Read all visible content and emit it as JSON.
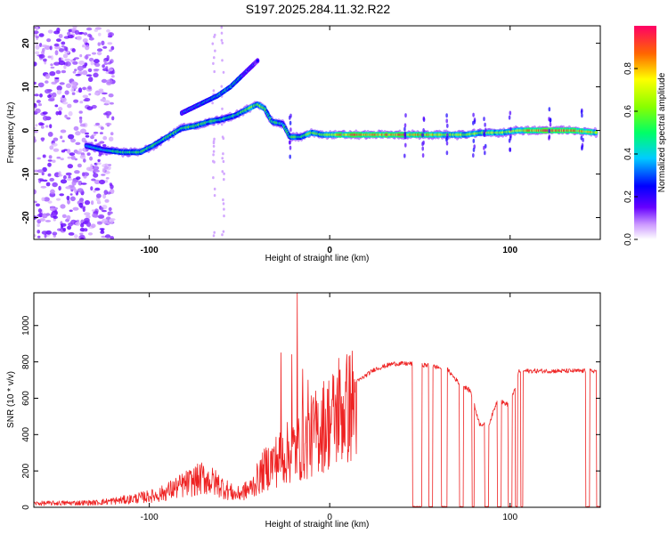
{
  "title": "S197.2025.284.11.32.R22",
  "colors": {
    "snr_line": "#ee2222",
    "frame": "#000000",
    "background": "#ffffff"
  },
  "chart_data": [
    {
      "type": "heatmap",
      "name": "spectrogram",
      "xlabel": "Height of straight line (km)",
      "ylabel": "Frequency (Hz)",
      "xlim": [
        -164,
        150
      ],
      "ylim": [
        -25,
        24
      ],
      "xticks": [
        -100,
        0,
        100
      ],
      "xtick_labels": [
        "-100",
        "0",
        "100"
      ],
      "yticks": [
        -20,
        -10,
        0,
        10,
        20
      ],
      "ytick_labels": [
        "-20",
        "-10",
        "0",
        "10",
        "20"
      ],
      "colorbar": {
        "label": "Normalized spectral amplitude",
        "range": [
          0,
          1
        ],
        "ticks": [
          0.0,
          0.2,
          0.4,
          0.6,
          0.8
        ],
        "tick_labels": [
          "0.0",
          "0.2",
          "0.4",
          "0.6",
          "0.8"
        ]
      },
      "ridge": [
        {
          "x": -135,
          "y": -3.5,
          "a": 0.4
        },
        {
          "x": -125,
          "y": -4.5,
          "a": 0.45
        },
        {
          "x": -115,
          "y": -5,
          "a": 0.55
        },
        {
          "x": -105,
          "y": -5,
          "a": 0.55
        },
        {
          "x": -98,
          "y": -3.5,
          "a": 0.55
        },
        {
          "x": -90,
          "y": -1.5,
          "a": 0.55
        },
        {
          "x": -82,
          "y": 0.5,
          "a": 0.6
        },
        {
          "x": -75,
          "y": 1,
          "a": 0.6
        },
        {
          "x": -67,
          "y": 2,
          "a": 0.55
        },
        {
          "x": -60,
          "y": 2.5,
          "a": 0.55
        },
        {
          "x": -52,
          "y": 3.5,
          "a": 0.55
        },
        {
          "x": -45,
          "y": 5,
          "a": 0.6
        },
        {
          "x": -40,
          "y": 6,
          "a": 0.65
        },
        {
          "x": -36,
          "y": 5,
          "a": 0.6
        },
        {
          "x": -32,
          "y": 2,
          "a": 0.55
        },
        {
          "x": -26,
          "y": 1.5,
          "a": 0.5
        },
        {
          "x": -22,
          "y": -1.5,
          "a": 0.55
        },
        {
          "x": -16,
          "y": -1.5,
          "a": 0.6
        },
        {
          "x": -10,
          "y": -0.5,
          "a": 0.65
        },
        {
          "x": -4,
          "y": -1,
          "a": 0.6
        },
        {
          "x": 5,
          "y": -1,
          "a": 0.85
        },
        {
          "x": 20,
          "y": -1,
          "a": 0.95
        },
        {
          "x": 35,
          "y": -1,
          "a": 0.95
        },
        {
          "x": 45,
          "y": -1,
          "a": 0.85
        },
        {
          "x": 55,
          "y": -1,
          "a": 0.85
        },
        {
          "x": 65,
          "y": -1,
          "a": 0.75
        },
        {
          "x": 75,
          "y": -1,
          "a": 0.7
        },
        {
          "x": 85,
          "y": -0.5,
          "a": 0.7
        },
        {
          "x": 95,
          "y": -0.5,
          "a": 0.7
        },
        {
          "x": 105,
          "y": 0,
          "a": 0.75
        },
        {
          "x": 115,
          "y": 0,
          "a": 0.95
        },
        {
          "x": 125,
          "y": 0,
          "a": 1.0
        },
        {
          "x": 135,
          "y": 0,
          "a": 0.95
        },
        {
          "x": 148,
          "y": -0.5,
          "a": 0.75
        }
      ],
      "branch": [
        {
          "x": -82,
          "y": 4,
          "a": 0.4
        },
        {
          "x": -72,
          "y": 6,
          "a": 0.45
        },
        {
          "x": -62,
          "y": 8,
          "a": 0.5
        },
        {
          "x": -55,
          "y": 10,
          "a": 0.55
        },
        {
          "x": -50,
          "y": 12,
          "a": 0.45
        },
        {
          "x": -45,
          "y": 14,
          "a": 0.35
        },
        {
          "x": -40,
          "y": 16,
          "a": 0.25
        }
      ],
      "noise_region": [
        -164,
        -120
      ]
    },
    {
      "type": "line",
      "name": "snr",
      "xlabel": "Height of straight line (km)",
      "ylabel": "SNR (10 * v/v)",
      "xlim": [
        -164,
        150
      ],
      "ylim": [
        0,
        1180
      ],
      "xticks": [
        -100,
        0,
        100
      ],
      "xtick_labels": [
        "-100",
        "0",
        "100"
      ],
      "yticks": [
        0,
        200,
        400,
        600,
        800,
        1000
      ],
      "ytick_labels": [
        "0",
        "200",
        "400",
        "600",
        "800",
        "1000"
      ],
      "envelope": [
        {
          "x": -164,
          "y": 25
        },
        {
          "x": -130,
          "y": 30
        },
        {
          "x": -112,
          "y": 50
        },
        {
          "x": -95,
          "y": 80
        },
        {
          "x": -80,
          "y": 150
        },
        {
          "x": -70,
          "y": 190
        },
        {
          "x": -62,
          "y": 150
        },
        {
          "x": -52,
          "y": 80
        },
        {
          "x": -44,
          "y": 120
        },
        {
          "x": -35,
          "y": 260
        },
        {
          "x": -25,
          "y": 340
        },
        {
          "x": -15,
          "y": 400
        },
        {
          "x": -5,
          "y": 520
        },
        {
          "x": 5,
          "y": 600
        },
        {
          "x": 15,
          "y": 690
        },
        {
          "x": 25,
          "y": 760
        },
        {
          "x": 35,
          "y": 790
        },
        {
          "x": 45,
          "y": 790
        },
        {
          "x": 55,
          "y": 780
        },
        {
          "x": 65,
          "y": 760
        },
        {
          "x": 72,
          "y": 680
        },
        {
          "x": 78,
          "y": 640
        },
        {
          "x": 83,
          "y": 460
        },
        {
          "x": 88,
          "y": 450
        },
        {
          "x": 93,
          "y": 590
        },
        {
          "x": 100,
          "y": 560
        },
        {
          "x": 105,
          "y": 750
        },
        {
          "x": 150,
          "y": 750
        }
      ],
      "spikes": [
        {
          "x": -27,
          "y": 850
        },
        {
          "x": -21,
          "y": 840
        },
        {
          "x": -18,
          "y": 1180
        },
        {
          "x": -15,
          "y": 760
        },
        {
          "x": -12,
          "y": 700
        },
        {
          "x": 5,
          "y": 820
        }
      ],
      "dropouts": [
        [
          46,
          51
        ],
        [
          55,
          57
        ],
        [
          62,
          65
        ],
        [
          72,
          74
        ],
        [
          79,
          80
        ],
        [
          86,
          88
        ],
        [
          93,
          95
        ],
        [
          99,
          101
        ],
        [
          103,
          104
        ],
        [
          106,
          107
        ],
        [
          142,
          144
        ],
        [
          148,
          150
        ]
      ]
    }
  ]
}
